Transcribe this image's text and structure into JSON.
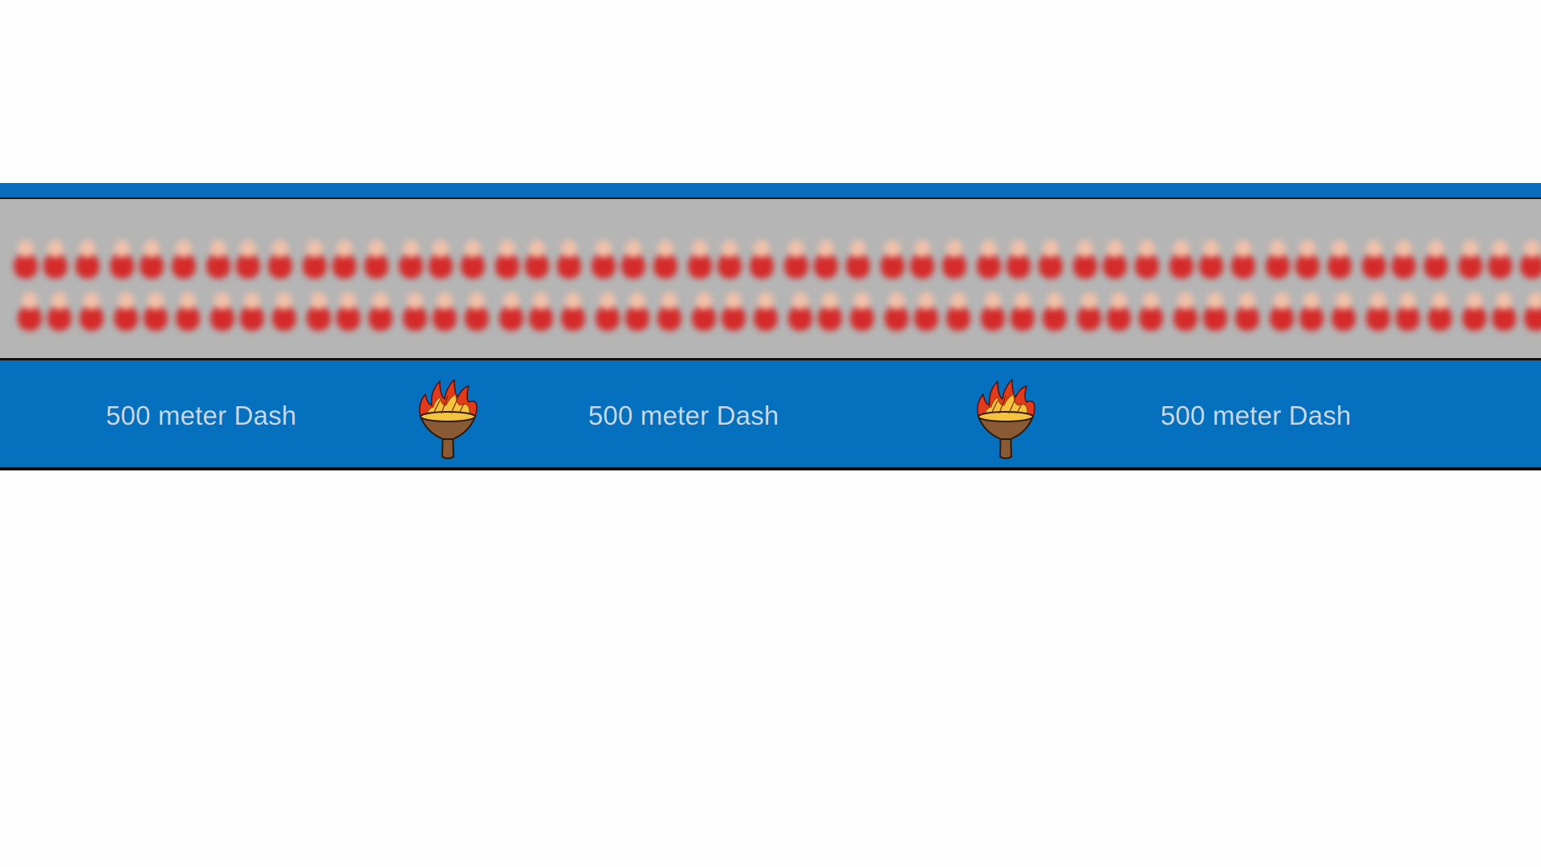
{
  "scene": {
    "colors": {
      "page_background": "#fefefe",
      "stripe_blue": "#0a6cbf",
      "banner_blue": "#0570be",
      "stands_gray": "#b5b5b5",
      "spectator_shirt": "#d42a2a",
      "spectator_head": "#f1c0a8",
      "torch_bowl": "#8a5a34",
      "flame_outer": "#e23b1c",
      "flame_inner": "#f6c43c"
    },
    "crowd": {
      "rows": 2,
      "spectators_per_row": 48,
      "icon": "spectator-icon"
    },
    "banner": {
      "labels": [
        "500 meter Dash",
        "500 meter Dash",
        "500 meter Dash"
      ],
      "torch_count": 2,
      "torch_icon": "torch-icon"
    }
  }
}
